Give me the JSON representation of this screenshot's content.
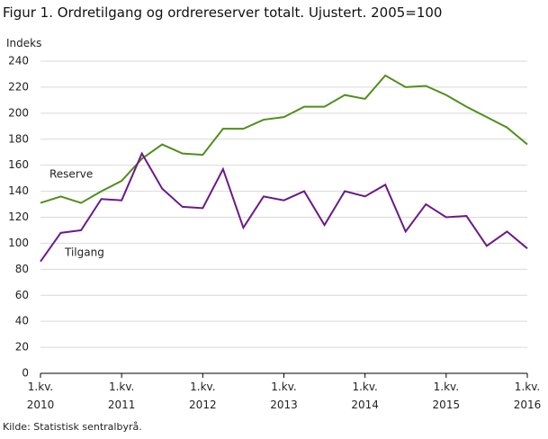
{
  "chart_data": {
    "type": "line",
    "title": "Figur 1. Ordretilgang og ordrereserver totalt. Ujustert. 2005=100",
    "y_label": "Indeks",
    "source": "Kilde: Statistisk sentralbyrå.",
    "categories": [
      "1.kv. 2010",
      null,
      null,
      null,
      "1.kv. 2011",
      null,
      null,
      null,
      "1.kv. 2012",
      null,
      null,
      null,
      "1.kv. 2013",
      null,
      null,
      null,
      "1.kv. 2014",
      null,
      null,
      null,
      "1.kv. 2015",
      null,
      null,
      null,
      "1.kv. 2016"
    ],
    "series": [
      {
        "name": "Reserve",
        "color": "#4f8f1c",
        "values": [
          131,
          136,
          131,
          140,
          148,
          165,
          176,
          169,
          168,
          188,
          188,
          195,
          197,
          205,
          205,
          214,
          211,
          229,
          220,
          221,
          214,
          205,
          197,
          189,
          176
        ]
      },
      {
        "name": "Tilgang",
        "color": "#6b1a8a",
        "values": [
          86,
          108,
          110,
          134,
          133,
          169,
          142,
          128,
          127,
          157,
          112,
          136,
          133,
          140,
          114,
          140,
          136,
          145,
          109,
          130,
          120,
          121,
          98,
          109,
          96
        ]
      }
    ],
    "ylim": [
      0,
      240
    ],
    "yticks": [
      0,
      20,
      40,
      60,
      80,
      100,
      120,
      140,
      160,
      180,
      200,
      220,
      240
    ],
    "grid": true
  }
}
